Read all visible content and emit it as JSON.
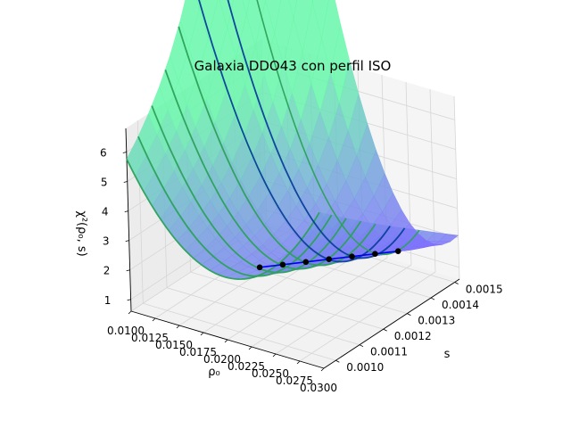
{
  "chart_data": {
    "type": "surface",
    "title": "Galaxia DDO43 con perfil ISO",
    "xlabel": "ρ₀",
    "ylabel": "s",
    "zlabel": "χ²(ρ₀, s)",
    "x_ticks": [
      "0.0100",
      "0.0125",
      "0.0150",
      "0.0175",
      "0.0200",
      "0.0225",
      "0.0250",
      "0.0275",
      "0.0300"
    ],
    "y_ticks": [
      "0.0010",
      "0.0011",
      "0.0012",
      "0.0013",
      "0.0014",
      "0.0015"
    ],
    "z_ticks": [
      "1",
      "2",
      "3",
      "4",
      "5",
      "6"
    ],
    "x_range": [
      0.01,
      0.03
    ],
    "y_range": [
      0.00095,
      0.00152
    ],
    "z_range": [
      0.6,
      6.8
    ],
    "grid": true,
    "colors": {
      "surface_low": "#7e6cff",
      "surface_high": "#67f7a9",
      "curve_light": "#2ca15a",
      "curve_dark": "#0a3f9a",
      "min_path": "#0000ee",
      "min_point": "#000000",
      "pane": "#f2f2f2",
      "grid": "#d6d6d6"
    },
    "curves_at_s": [
      0.00095,
      0.001,
      0.00106,
      0.00112,
      0.00118,
      0.00124,
      0.0013,
      0.00136
    ],
    "minimum_path": [
      {
        "s": 0.00106,
        "rho0": 0.0208,
        "chi2": 2.55
      },
      {
        "s": 0.00112,
        "rho0": 0.0217,
        "chi2": 2.41
      },
      {
        "s": 0.00118,
        "rho0": 0.0226,
        "chi2": 2.27
      },
      {
        "s": 0.00124,
        "rho0": 0.0235,
        "chi2": 2.13
      },
      {
        "s": 0.0013,
        "rho0": 0.0244,
        "chi2": 1.99
      },
      {
        "s": 0.00136,
        "rho0": 0.0253,
        "chi2": 1.85
      },
      {
        "s": 0.00142,
        "rho0": 0.0262,
        "chi2": 1.71
      }
    ]
  }
}
